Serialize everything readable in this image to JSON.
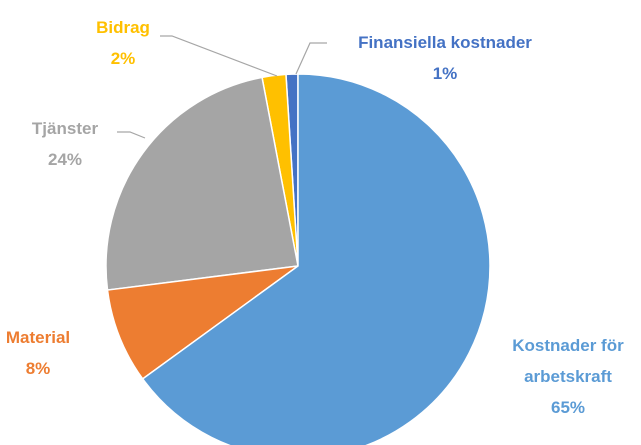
{
  "chart_data": {
    "type": "pie",
    "categories": [
      "Kostnader för arbetskraft",
      "Material",
      "Tjänster",
      "Bidrag",
      "Finansiella kostnader"
    ],
    "values": [
      65,
      8,
      24,
      2,
      1
    ],
    "value_labels": [
      "65%",
      "8%",
      "24%",
      "2%",
      "1%"
    ],
    "colors": [
      "#5b9bd5",
      "#ed7d31",
      "#a5a5a5",
      "#ffc000",
      "#4472c4"
    ]
  }
}
